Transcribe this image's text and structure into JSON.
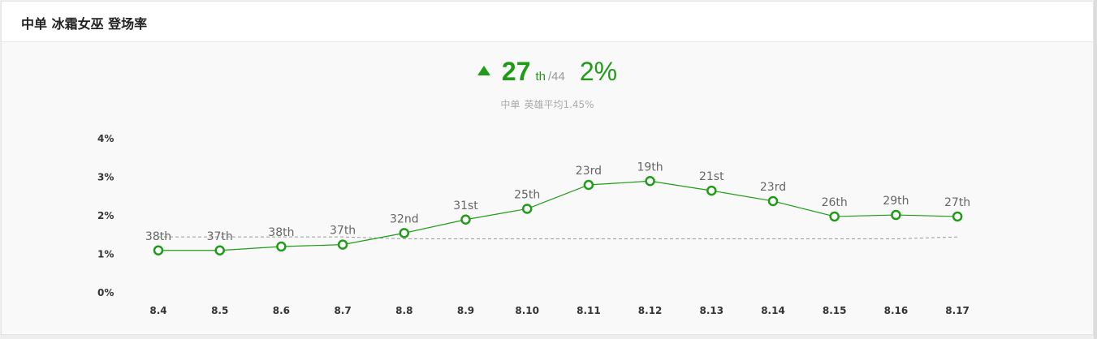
{
  "header": {
    "title": "中单 冰霜女巫 登场率"
  },
  "summary": {
    "rank": "27",
    "rank_suffix": "th",
    "rank_total": "/44",
    "rate": "2%",
    "avg_role": "中单",
    "avg_text": "英雄平均1.45%",
    "trend": "up"
  },
  "colors": {
    "accent": "#1f9c17",
    "avg_line": "#999999"
  },
  "chart_data": {
    "type": "line",
    "title": "",
    "xlabel": "",
    "ylabel": "",
    "categories": [
      "8.4",
      "8.5",
      "8.6",
      "8.7",
      "8.8",
      "8.9",
      "8.10",
      "8.11",
      "8.12",
      "8.13",
      "8.14",
      "8.15",
      "8.16",
      "8.17"
    ],
    "series": [
      {
        "values": [
          1.1,
          1.1,
          1.2,
          1.25,
          1.55,
          1.9,
          2.18,
          2.8,
          2.9,
          2.65,
          2.38,
          1.98,
          2.02,
          1.98
        ],
        "labels": [
          "38th",
          "37th",
          "38th",
          "37th",
          "32nd",
          "31st",
          "25th",
          "23rd",
          "19th",
          "21st",
          "23rd",
          "26th",
          "29th",
          "27th"
        ]
      }
    ],
    "reference": {
      "values": [
        1.45,
        1.45,
        1.45,
        1.45,
        1.4,
        1.4,
        1.4,
        1.4,
        1.4,
        1.4,
        1.4,
        1.4,
        1.4,
        1.45
      ]
    },
    "yticks": [
      "0%",
      "1%",
      "2%",
      "3%",
      "4%"
    ],
    "ylim": [
      0,
      4
    ],
    "grid": false,
    "legend": "none"
  }
}
